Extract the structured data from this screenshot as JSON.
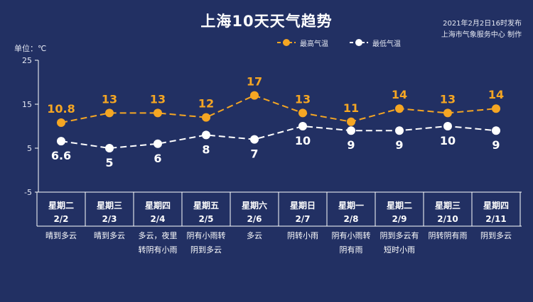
{
  "header": {
    "title": "上海10天天气趋势",
    "publish_time": "2021年2月2日16时发布",
    "publisher": "上海市气象服务中心 制作",
    "unit_label": "单位：℃"
  },
  "colors": {
    "background": "#223063",
    "max_line": "#f5a623",
    "min_line": "#ffffff",
    "grid": "#ffffff"
  },
  "chart_data": {
    "type": "line",
    "ylim": [
      -5,
      25
    ],
    "yticks": [
      25,
      15,
      5,
      -5
    ],
    "grid": false,
    "legend_position": "top-right",
    "categories": [
      {
        "weekday": "星期二",
        "date": "2/2",
        "weather": [
          "晴到多云"
        ]
      },
      {
        "weekday": "星期三",
        "date": "2/3",
        "weather": [
          "晴到多云"
        ]
      },
      {
        "weekday": "星期四",
        "date": "2/4",
        "weather": [
          "多云，夜里",
          "转阴有小雨"
        ]
      },
      {
        "weekday": "星期五",
        "date": "2/5",
        "weather": [
          "阴有小雨转",
          "阴到多云"
        ]
      },
      {
        "weekday": "星期六",
        "date": "2/6",
        "weather": [
          "多云"
        ]
      },
      {
        "weekday": "星期日",
        "date": "2/7",
        "weather": [
          "阴转小雨"
        ]
      },
      {
        "weekday": "星期一",
        "date": "2/8",
        "weather": [
          "阴有小雨转",
          "阴有雨"
        ]
      },
      {
        "weekday": "星期二",
        "date": "2/9",
        "weather": [
          "阴到多云有",
          "短时小雨"
        ]
      },
      {
        "weekday": "星期三",
        "date": "2/10",
        "weather": [
          "阴转阴有雨"
        ]
      },
      {
        "weekday": "星期四",
        "date": "2/11",
        "weather": [
          "阴到多云"
        ]
      }
    ],
    "series": [
      {
        "name": "最高气温",
        "values": [
          10.8,
          13,
          13,
          12,
          17,
          13,
          11,
          14,
          13,
          14
        ],
        "labels": [
          "10.8",
          "13",
          "13",
          "12",
          "17",
          "13",
          "11",
          "14",
          "13",
          "14"
        ]
      },
      {
        "name": "最低气温",
        "values": [
          6.6,
          5,
          6,
          8,
          7,
          10,
          9,
          9,
          10,
          9
        ],
        "labels": [
          "6.6",
          "5",
          "6",
          "8",
          "7",
          "10",
          "9",
          "9",
          "10",
          "9"
        ]
      }
    ]
  }
}
